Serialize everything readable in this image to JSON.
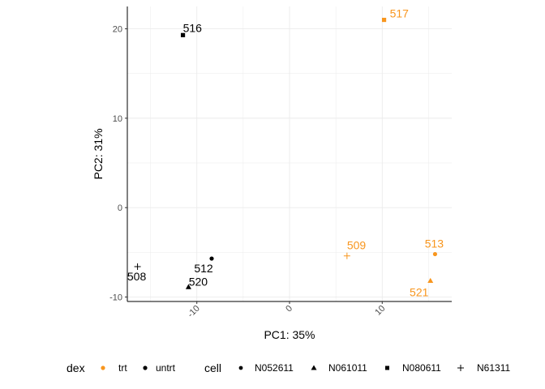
{
  "chart_data": {
    "type": "scatter",
    "title": "",
    "xlabel": "PC1: 35%",
    "ylabel": "PC2: 31%",
    "xlim": [
      -17.5,
      17.5
    ],
    "ylim": [
      -10.5,
      22.5
    ],
    "xticks": [
      -10,
      0,
      10
    ],
    "xtick_labels": [
      "-10",
      "0",
      "10"
    ],
    "yticks": [
      -10,
      0,
      10,
      20
    ],
    "ytick_labels": [
      "-10",
      "0",
      "10",
      "20"
    ],
    "grid": true,
    "legend_position": "bottom",
    "colors": {
      "trt": "#F8961E",
      "untrt": "#000000"
    },
    "points": [
      {
        "label": "517",
        "x": 10.2,
        "y": 21.0,
        "dex": "trt",
        "cell": "N080611"
      },
      {
        "label": "516",
        "x": -11.5,
        "y": 19.3,
        "dex": "untrt",
        "cell": "N080611"
      },
      {
        "label": "509",
        "x": 6.2,
        "y": -5.4,
        "dex": "trt",
        "cell": "N61311"
      },
      {
        "label": "513",
        "x": 15.7,
        "y": -5.2,
        "dex": "trt",
        "cell": "N052611"
      },
      {
        "label": "521",
        "x": 15.2,
        "y": -8.2,
        "dex": "trt",
        "cell": "N061011"
      },
      {
        "label": "512",
        "x": -8.4,
        "y": -5.7,
        "dex": "untrt",
        "cell": "N052611"
      },
      {
        "label": "520",
        "x": -10.9,
        "y": -8.9,
        "dex": "untrt",
        "cell": "N061011"
      },
      {
        "label": "508",
        "x": -16.4,
        "y": -6.6,
        "dex": "untrt",
        "cell": "N61311"
      }
    ],
    "legend": {
      "dex": {
        "title": "dex",
        "entries": [
          "trt",
          "untrt"
        ]
      },
      "cell": {
        "title": "cell",
        "entries": [
          "N052611",
          "N061011",
          "N080611",
          "N61311"
        ]
      }
    }
  }
}
